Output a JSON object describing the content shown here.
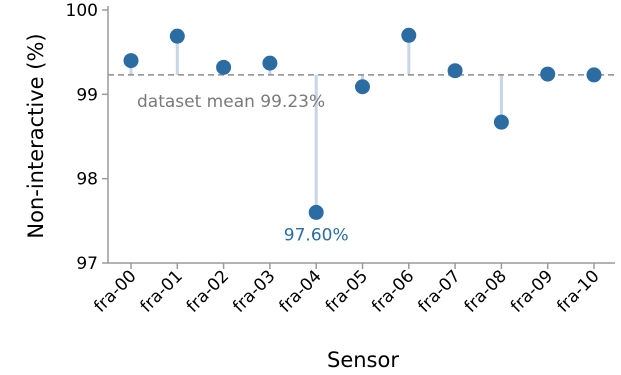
{
  "chart_data": {
    "type": "lollipop",
    "categories": [
      "fra-00",
      "fra-01",
      "fra-02",
      "fra-03",
      "fra-04",
      "fra-05",
      "fra-06",
      "fra-07",
      "fra-08",
      "fra-09",
      "fra-10"
    ],
    "values": [
      99.4,
      99.69,
      99.32,
      99.37,
      97.6,
      99.09,
      99.7,
      99.28,
      98.67,
      99.24,
      99.23
    ],
    "xlabel": "Sensor",
    "ylabel": "Non-interactive (%)",
    "ylim": [
      97,
      100
    ],
    "yticks": [
      97,
      98,
      99,
      100
    ],
    "reference_line": {
      "value": 99.23,
      "label": "dataset mean 99.23%"
    },
    "annotation": {
      "category": "fra-04",
      "text": "97.60%"
    },
    "grid": false,
    "colors": {
      "point": "#2b6ca3",
      "stem": "#c6d6e6",
      "reference": "#8c8c8c",
      "annotation": "#2b6ca3",
      "axis": "#9a9a9a"
    }
  }
}
